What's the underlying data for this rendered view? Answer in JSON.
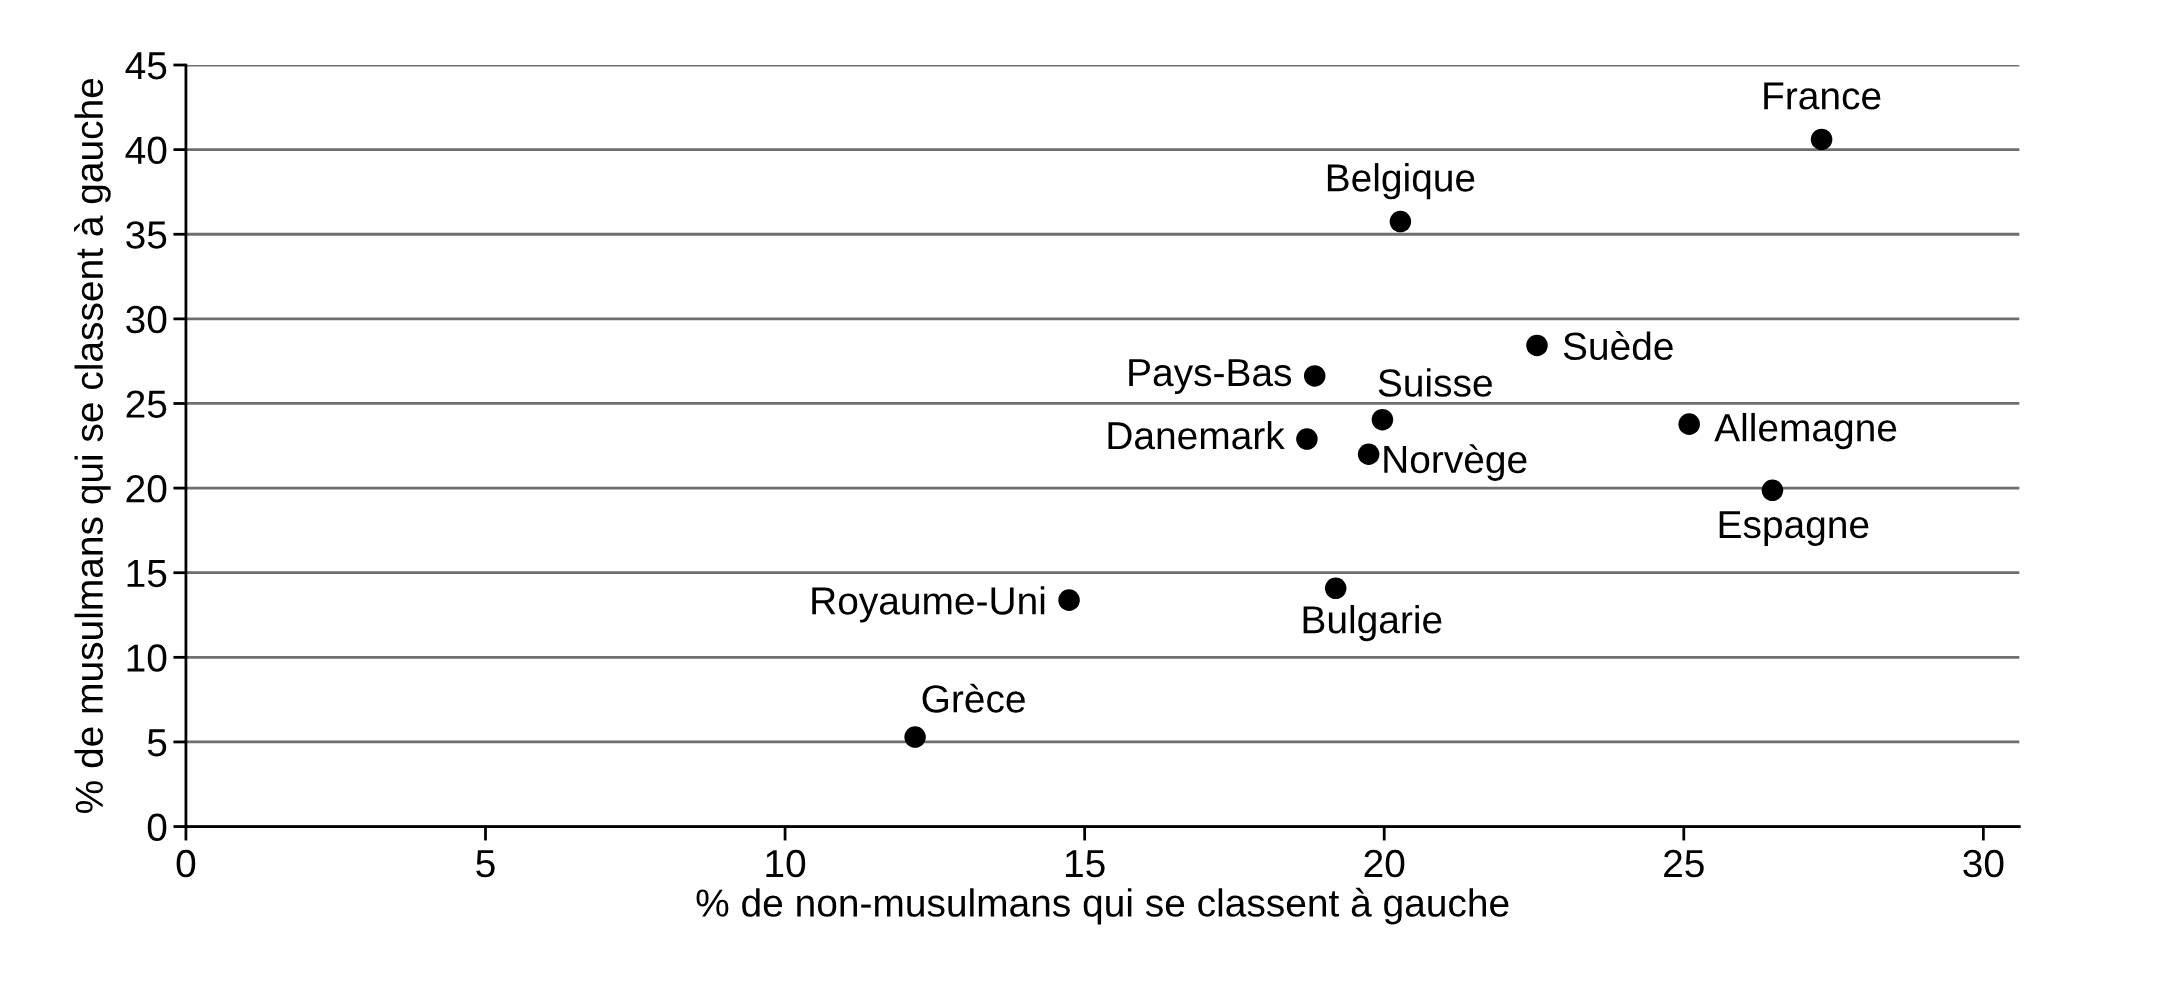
{
  "chart_data": {
    "type": "scatter",
    "xlabel": "% de non-musulmans qui se classent à gauche",
    "ylabel": "% de musulmans qui se classent à gauche",
    "x": [
      27.3,
      20.27,
      22.55,
      18.84,
      19.97,
      18.71,
      19.74,
      25.09,
      26.48,
      19.19,
      14.74,
      12.17
    ],
    "series": [
      {
        "color": "#000000",
        "values": [
          40.6,
          35.75,
          28.43,
          26.63,
          24.04,
          22.9,
          22.0,
          23.78,
          19.87,
          14.08,
          13.38,
          5.29
        ]
      }
    ],
    "marker": "circle",
    "grid": "y",
    "xlim": [
      0,
      30.6
    ],
    "xticks": [
      0,
      5,
      10,
      15,
      20,
      25,
      30
    ],
    "ylim": [
      0,
      45
    ],
    "yticks": [
      0,
      5,
      10,
      15,
      20,
      25,
      30,
      35,
      40,
      45
    ],
    "annotations": [
      {
        "text": "France",
        "x": 27.3,
        "y": 40.6
      },
      {
        "text": "Belgique",
        "x": 20.27,
        "y": 35.75
      },
      {
        "text": "Suède",
        "x": 22.55,
        "y": 28.43
      },
      {
        "text": "Pays-Bas",
        "x": 18.84,
        "y": 26.63
      },
      {
        "text": "Suisse",
        "x": 19.97,
        "y": 24.04
      },
      {
        "text": "Danemark",
        "x": 18.71,
        "y": 22.9
      },
      {
        "text": "Norvège",
        "x": 19.74,
        "y": 22.0
      },
      {
        "text": "Allemagne",
        "x": 25.09,
        "y": 23.78
      },
      {
        "text": "Espagne",
        "x": 26.48,
        "y": 19.87
      },
      {
        "text": "Bulgarie",
        "x": 19.19,
        "y": 14.08
      },
      {
        "text": "Royaume-Uni",
        "x": 14.74,
        "y": 13.38
      },
      {
        "text": "Grèce",
        "x": 12.17,
        "y": 5.29
      }
    ]
  }
}
